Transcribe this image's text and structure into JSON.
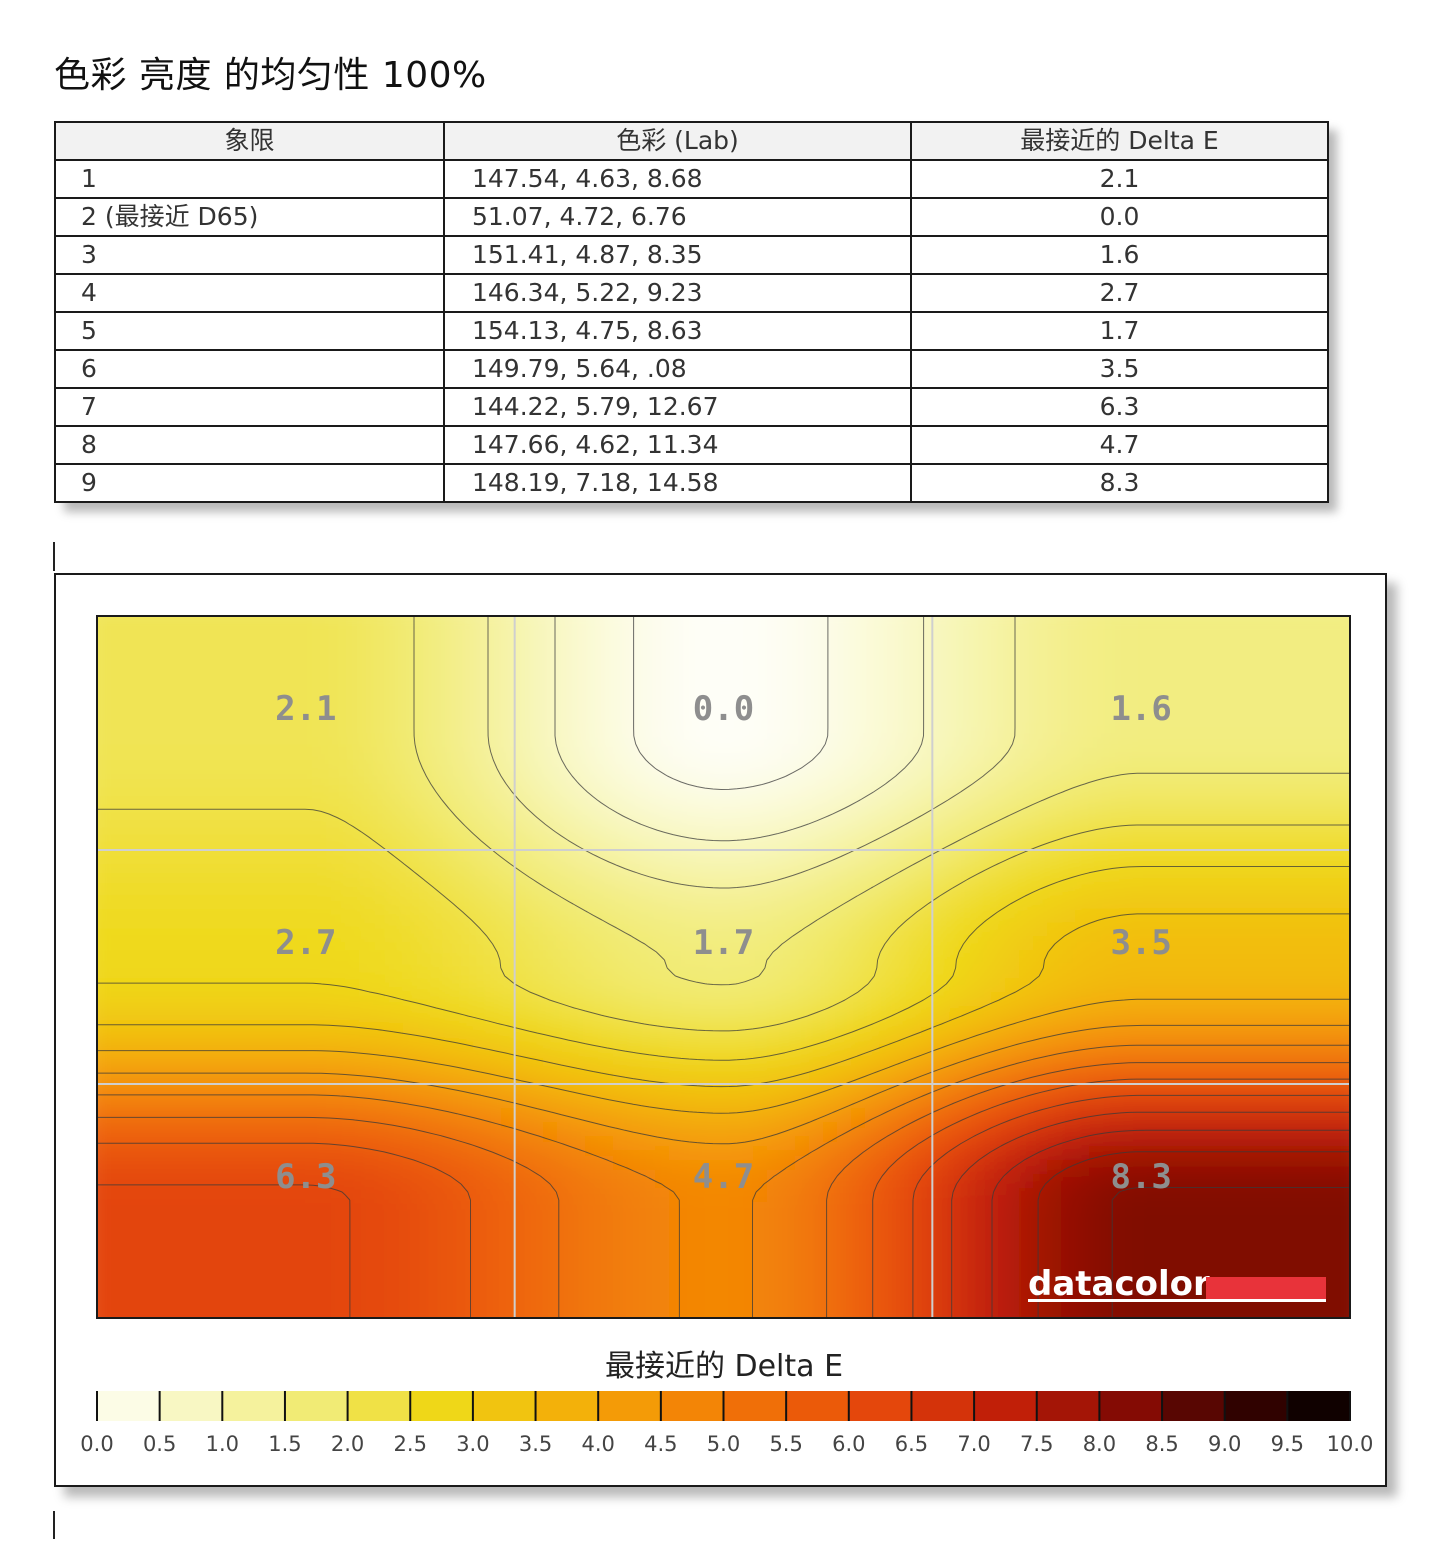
{
  "title": "色彩 亮度 的均匀性 100%",
  "table": {
    "headers": [
      "象限",
      "色彩 (Lab)",
      "最接近的 Delta E"
    ],
    "rows": [
      [
        "1",
        "147.54,  4.63,  8.68",
        "2.1"
      ],
      [
        "2 (最接近 D65)",
        "51.07,  4.72,  6.76",
        "0.0"
      ],
      [
        "3",
        "151.41,  4.87,  8.35",
        "1.6"
      ],
      [
        "4",
        "146.34,  5.22,  9.23",
        "2.7"
      ],
      [
        "5",
        "154.13,  4.75,  8.63",
        "1.7"
      ],
      [
        "6",
        "149.79,  5.64,   .08",
        "3.5"
      ],
      [
        "7",
        "144.22,  5.79, 12.67",
        "6.3"
      ],
      [
        "8",
        "147.66,  4.62, 11.34",
        "4.7"
      ],
      [
        "9",
        "148.19,  7.18, 14.58",
        "8.3"
      ]
    ]
  },
  "chart_data": {
    "type": "heatmap",
    "grid_rows": 3,
    "grid_cols": 3,
    "values": [
      [
        2.1,
        0.0,
        1.6
      ],
      [
        2.7,
        1.7,
        3.5
      ],
      [
        6.3,
        4.7,
        8.3
      ]
    ],
    "cell_labels": [
      [
        "2.1",
        "0.0",
        "1.6"
      ],
      [
        "2.7",
        "1.7",
        "3.5"
      ],
      [
        "6.3",
        "4.7",
        "8.3"
      ]
    ],
    "grid": true,
    "contours": true,
    "legend_title": "最接近的 Delta E",
    "legend_ticks": [
      "0.0",
      "0.5",
      "1.0",
      "1.5",
      "2.0",
      "2.5",
      "3.0",
      "3.5",
      "4.0",
      "4.5",
      "5.0",
      "5.5",
      "6.0",
      "6.5",
      "7.0",
      "7.5",
      "8.0",
      "8.5",
      "9.0",
      "9.5",
      "10.0"
    ],
    "legend_range": [
      0,
      10
    ],
    "legend_placement": "bottom",
    "colors": [
      "#fefef8",
      "#f7f6b8",
      "#f1ea70",
      "#efd818",
      "#f3b60a",
      "#f48e06",
      "#ef6608",
      "#e2420c",
      "#c01e08",
      "#8a0c04",
      "#3a0300",
      "#000000"
    ],
    "brand": "datacolor",
    "brand_color": "#e8333a"
  }
}
